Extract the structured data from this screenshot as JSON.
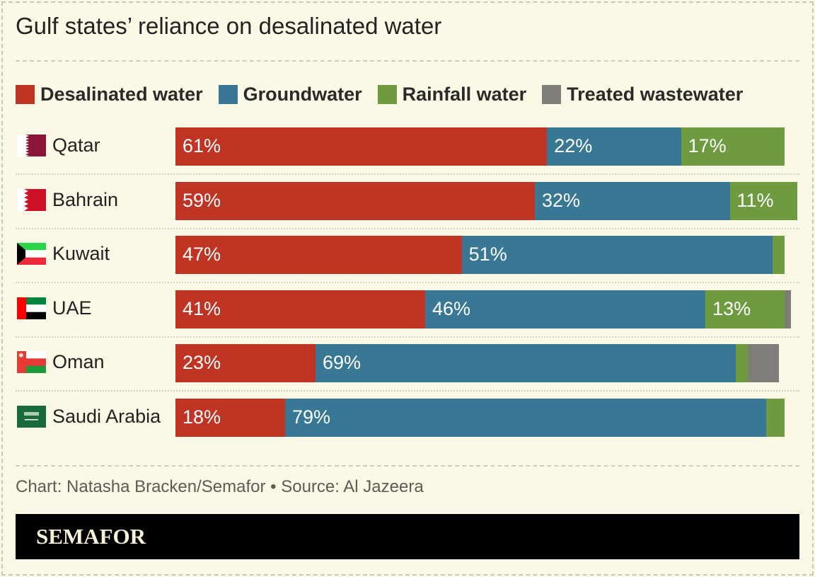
{
  "title": "Gulf states’ reliance on desalinated water",
  "footer": "Chart: Natasha Bracken/Semafor • Source: Al Jazeera",
  "brand": "SEMAFOR",
  "chart_data": {
    "type": "bar",
    "orientation": "horizontal",
    "stacked": true,
    "legend_placement": "top",
    "unit": "%",
    "categories": [
      "Qatar",
      "Bahrain",
      "Kuwait",
      "UAE",
      "Oman",
      "Saudi Arabia"
    ],
    "flag_icons": [
      "qatar-flag-icon",
      "bahrain-flag-icon",
      "kuwait-flag-icon",
      "uae-flag-icon",
      "oman-flag-icon",
      "saudi-arabia-flag-icon"
    ],
    "series": [
      {
        "name": "Desalinated water",
        "color": "#c03424",
        "values": [
          61,
          59,
          47,
          41,
          23,
          18
        ],
        "labels": [
          "61%",
          "59%",
          "47%",
          "41%",
          "23%",
          "18%"
        ]
      },
      {
        "name": "Groundwater",
        "color": "#387895",
        "values": [
          22,
          32,
          51,
          46,
          69,
          79
        ],
        "labels": [
          "22%",
          "32%",
          "51%",
          "46%",
          "69%",
          "79%"
        ]
      },
      {
        "name": "Rainfall water",
        "color": "#6e9a40",
        "values": [
          17,
          11,
          2,
          13,
          2,
          3
        ],
        "labels": [
          "17%",
          "11%",
          "",
          "13%",
          "",
          ""
        ]
      },
      {
        "name": "Treated wastewater",
        "color": "#7e7d7a",
        "values": [
          0,
          0,
          0,
          1,
          5,
          0
        ],
        "labels": [
          "",
          "",
          "",
          "",
          "",
          ""
        ]
      }
    ],
    "xlim": [
      0,
      100
    ],
    "grid": false
  }
}
